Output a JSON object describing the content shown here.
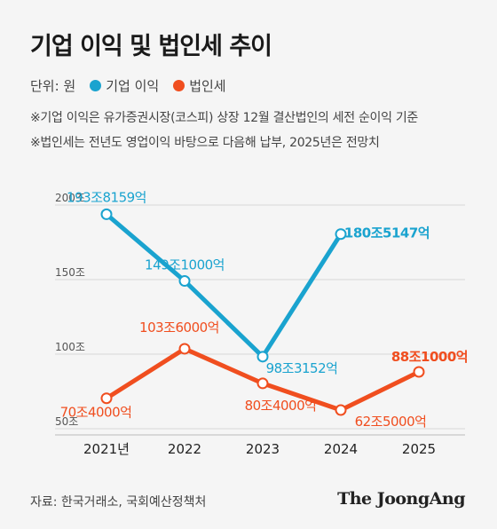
{
  "title": "기업 이익 및 법인세 추이",
  "legend": {
    "unit": "단위: 원",
    "items": [
      {
        "label": "기업 이익",
        "color": "#1aa3cf"
      },
      {
        "label": "법인세",
        "color": "#f04e1f"
      }
    ]
  },
  "notes": [
    "※기업 이익은 유가증권시장(코스피) 상장 12월 결산법인의 세전 순이익 기준",
    "※법인세는 전년도 영업이익 바탕으로 다음해 납부, 2025년은 전망치"
  ],
  "chart_data": {
    "type": "line",
    "categories": [
      "2021년",
      "2022",
      "2023",
      "2024",
      "2025"
    ],
    "y_ticks": [
      {
        "value": 200,
        "label": "200조"
      },
      {
        "value": 150,
        "label": "150조"
      },
      {
        "value": 100,
        "label": "100조"
      },
      {
        "value": 50,
        "label": "50조"
      }
    ],
    "ylim": [
      50,
      200
    ],
    "grid": true,
    "series": [
      {
        "name": "기업 이익",
        "color": "#1aa3cf",
        "values": [
          193.8159,
          149.1,
          98.3152,
          180.5147,
          null
        ],
        "labels": [
          "193조8159억",
          "149조1000억",
          "98조3152억",
          "180조5147억",
          null
        ]
      },
      {
        "name": "법인세",
        "color": "#f04e1f",
        "values": [
          70.4,
          103.6,
          80.4,
          62.5,
          88.1
        ],
        "labels": [
          "70조4000억",
          "103조6000억",
          "80조4000억",
          "62조5000억",
          "88조1000억"
        ]
      }
    ]
  },
  "source": "자료: 한국거래소, 국회예산정책처",
  "brand": "The JoongAng"
}
